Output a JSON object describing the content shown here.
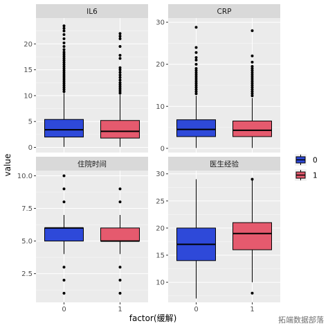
{
  "colors": {
    "level_0": "#2e49d9",
    "level_1": "#e55a6e",
    "panel_bg": "#ebebeb",
    "grid_major": "#ffffff",
    "strip_bg": "#d9d9d9"
  },
  "watermark": "拓端数据部落",
  "chart_data": {
    "type": "boxplot",
    "xlabel": "factor(缓解)",
    "ylabel": "value",
    "categories": [
      "0",
      "1"
    ],
    "grid": true,
    "legend": {
      "placement": "right",
      "entries": [
        {
          "label": "0",
          "color_key": "level_0"
        },
        {
          "label": "1",
          "color_key": "level_1"
        }
      ]
    },
    "panels": [
      {
        "name": "IL6",
        "ylim": [
          -1,
          25
        ],
        "yticks": [
          0,
          5,
          10,
          15,
          20
        ],
        "ytick_labels": [
          "0",
          "5",
          "10",
          "15",
          "20"
        ],
        "boxes": [
          {
            "category": "0",
            "q1": 2.0,
            "median": 3.4,
            "q3": 5.4,
            "whisker_low": 0.1,
            "whisker_high": 10.5,
            "outliers": [
              10.8,
              11.2,
              11.6,
              12.0,
              12.4,
              12.8,
              13.2,
              13.6,
              14.0,
              14.4,
              14.8,
              15.2,
              15.6,
              16.0,
              16.4,
              16.8,
              17.2,
              17.6,
              18.0,
              18.4,
              18.9,
              19.5,
              20.2,
              21.0,
              21.8,
              22.5,
              23.0,
              23.5
            ]
          },
          {
            "category": "1",
            "q1": 1.8,
            "median": 3.1,
            "q3": 5.2,
            "whisker_low": 0.1,
            "whisker_high": 10.2,
            "outliers": [
              10.5,
              10.9,
              11.3,
              11.7,
              12.1,
              12.5,
              13.0,
              13.5,
              14.0,
              14.5,
              15.0,
              15.4,
              17.2,
              17.8,
              19.5,
              21.0,
              21.5,
              22.0
            ]
          }
        ]
      },
      {
        "name": "CRP",
        "ylim": [
          -1,
          31
        ],
        "yticks": [
          0,
          10,
          20,
          30
        ],
        "ytick_labels": [
          "0",
          "10",
          "20",
          "30"
        ],
        "boxes": [
          {
            "category": "0",
            "q1": 2.8,
            "median": 4.5,
            "q3": 6.8,
            "whisker_low": 0.1,
            "whisker_high": 12.5,
            "outliers": [
              13.0,
              13.5,
              14.0,
              14.5,
              15.0,
              15.5,
              16.0,
              16.5,
              17.0,
              17.5,
              18.0,
              18.5,
              19.0,
              20.0,
              21.0,
              21.6,
              22.8,
              24.0,
              28.8
            ]
          },
          {
            "category": "1",
            "q1": 2.8,
            "median": 4.3,
            "q3": 6.5,
            "whisker_low": 0.1,
            "whisker_high": 12.0,
            "outliers": [
              12.5,
              13.0,
              13.5,
              14.0,
              14.5,
              15.0,
              15.5,
              16.0,
              16.5,
              17.0,
              17.5,
              18.0,
              18.5,
              19.0,
              19.5,
              20.5,
              22.0,
              28.0
            ]
          }
        ]
      },
      {
        "name": "住院时间",
        "ylim": [
          0.3,
          10.4
        ],
        "yticks": [
          2.5,
          5.0,
          7.5,
          10.0
        ],
        "ytick_labels": [
          "2.5",
          "5.0",
          "7.5",
          "10.0"
        ],
        "boxes": [
          {
            "category": "0",
            "q1": 5.0,
            "median": 6.0,
            "q3": 6.0,
            "whisker_low": 4.0,
            "whisker_high": 7.0,
            "outliers": [
              1.0,
              2.0,
              3.0,
              8.0,
              9.0,
              10.0
            ]
          },
          {
            "category": "1",
            "q1": 5.0,
            "median": 5.0,
            "q3": 6.0,
            "whisker_low": 4.0,
            "whisker_high": 7.0,
            "outliers": [
              1.0,
              2.0,
              3.0,
              8.0,
              9.0
            ]
          }
        ]
      },
      {
        "name": "医生经验",
        "ylim": [
          6.3,
          30.6
        ],
        "yticks": [
          10,
          15,
          20,
          25,
          30
        ],
        "ytick_labels": [
          "10",
          "15",
          "20",
          "25",
          "30"
        ],
        "boxes": [
          {
            "category": "0",
            "q1": 14.0,
            "median": 17.0,
            "q3": 20.0,
            "whisker_low": 7.0,
            "whisker_high": 29.0,
            "outliers": []
          },
          {
            "category": "1",
            "q1": 16.0,
            "median": 19.0,
            "q3": 21.0,
            "whisker_low": 10.0,
            "whisker_high": 29.0,
            "outliers": [
              8.0,
              29.0
            ]
          }
        ]
      }
    ]
  }
}
